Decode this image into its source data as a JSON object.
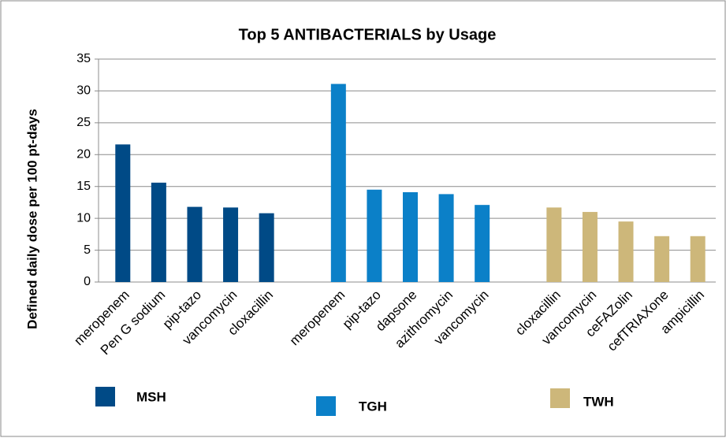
{
  "chart_data": {
    "type": "bar",
    "title": "Top 5 ANTIBACTERIALS by Usage",
    "y_label": "Defined daily dose per 100 pt-days",
    "categories": [
      "meropenem",
      "Pen G sodium",
      "pip-tazo",
      "vancomycin",
      "cloxacillin",
      null,
      "meropenem",
      "pip-tazo",
      "dapsone",
      "azithromycin",
      "vancomycin",
      null,
      "cloxacillin",
      "vancomycin",
      "ceFAZolin",
      "cefTRIAXone",
      "ampicillin"
    ],
    "series": [
      {
        "name": "MSH",
        "color": "#004a86",
        "values": [
          21.6,
          15.6,
          11.8,
          11.7,
          10.8,
          null,
          null,
          null,
          null,
          null,
          null,
          null,
          null,
          null,
          null,
          null,
          null
        ]
      },
      {
        "name": "TGH",
        "color": "#0b80c8",
        "values": [
          null,
          null,
          null,
          null,
          null,
          null,
          31.1,
          14.5,
          14.1,
          13.8,
          12.1,
          null,
          null,
          null,
          null,
          null,
          null
        ]
      },
      {
        "name": "TWH",
        "color": "#cdb77a",
        "values": [
          null,
          null,
          null,
          null,
          null,
          null,
          null,
          null,
          null,
          null,
          null,
          null,
          11.7,
          11.0,
          9.5,
          7.2,
          7.2
        ]
      }
    ],
    "ylim": [
      0,
      35
    ],
    "yticks": [
      0,
      5,
      10,
      15,
      20,
      25,
      30,
      35
    ],
    "grid": true
  }
}
